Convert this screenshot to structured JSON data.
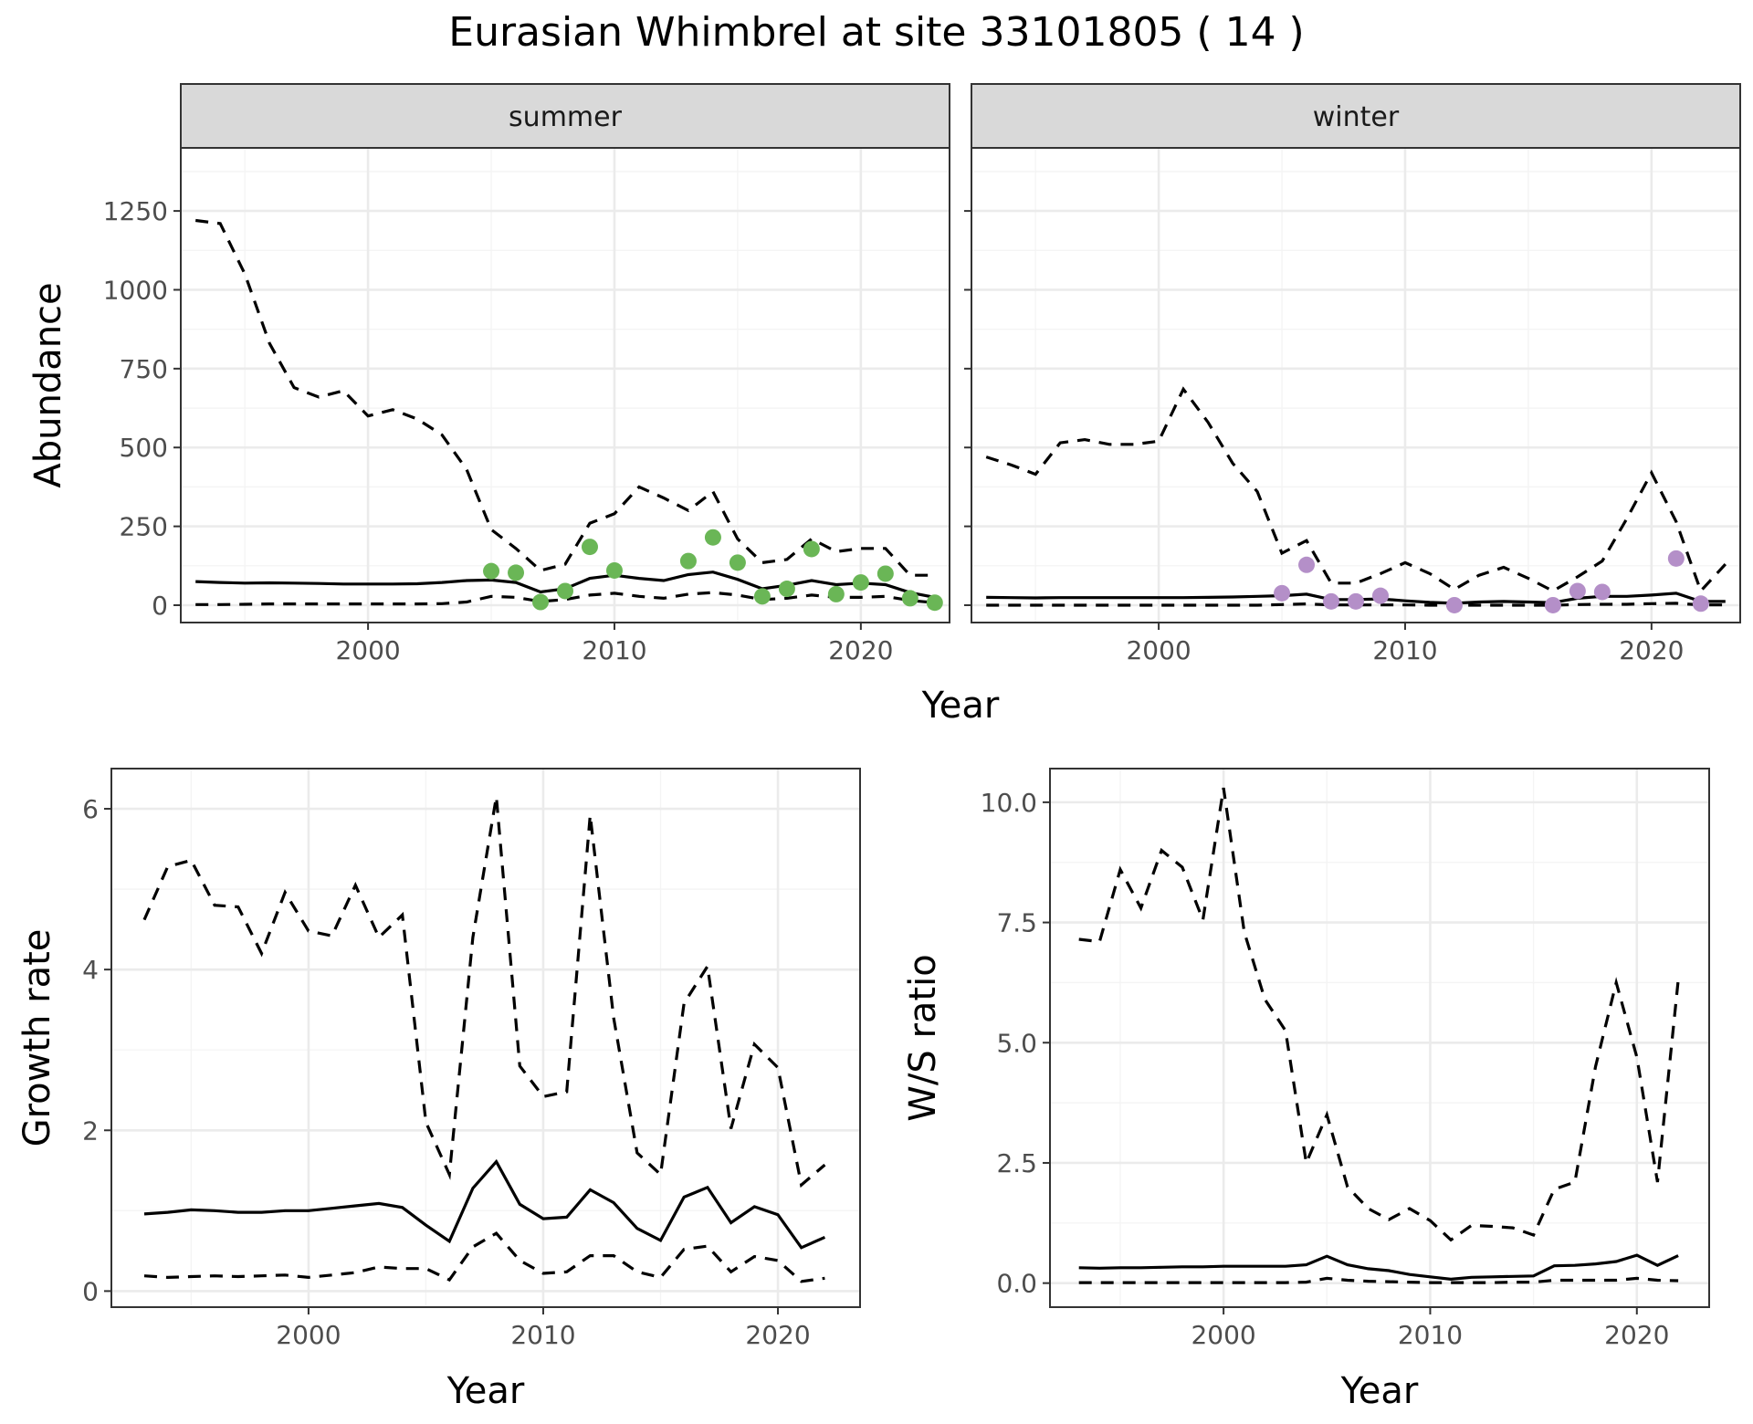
{
  "title": "Eurasian Whimbrel at site 33101805 ( 14 )",
  "colors": {
    "summer_points": "#6ab656",
    "winter_points": "#b48fc8",
    "lines": "#000000"
  },
  "chart_data": [
    {
      "type": "line",
      "id": "abundance-summer",
      "strip": "summer",
      "ylabel": "Abundance",
      "xlabel": "Year",
      "xlim": [
        1992.4,
        2023.6
      ],
      "ylim": [
        -55,
        1450
      ],
      "x_ticks": [
        2000,
        2010,
        2020
      ],
      "x_tick_labels": [
        "2000",
        "2010",
        "2020"
      ],
      "y_ticks": [
        0,
        250,
        500,
        750,
        1000,
        1250
      ],
      "y_tick_labels": [
        "0",
        "250",
        "500",
        "750",
        "1000",
        "1250"
      ],
      "grid": true,
      "series": [
        {
          "role": "mean",
          "style": "solid",
          "x": [
            1993,
            1994,
            1995,
            1996,
            1997,
            1998,
            1999,
            2000,
            2001,
            2002,
            2003,
            2004,
            2005,
            2006,
            2007,
            2008,
            2009,
            2010,
            2011,
            2012,
            2013,
            2014,
            2015,
            2016,
            2017,
            2018,
            2019,
            2020,
            2021,
            2022,
            2023
          ],
          "y": [
            75,
            72,
            70,
            71,
            70,
            69,
            67,
            67,
            67,
            68,
            72,
            78,
            80,
            72,
            42,
            52,
            85,
            95,
            85,
            78,
            97,
            105,
            82,
            52,
            63,
            78,
            65,
            70,
            65,
            40,
            25
          ]
        },
        {
          "role": "upper",
          "style": "dashed",
          "x": [
            1993,
            1994,
            1995,
            1996,
            1997,
            1998,
            1999,
            2000,
            2001,
            2002,
            2003,
            2004,
            2005,
            2006,
            2007,
            2008,
            2009,
            2010,
            2011,
            2012,
            2013,
            2014,
            2015,
            2016,
            2017,
            2018,
            2019,
            2020,
            2021,
            2022,
            2023
          ],
          "y": [
            1220,
            1210,
            1050,
            830,
            690,
            660,
            680,
            600,
            620,
            590,
            540,
            430,
            240,
            180,
            110,
            130,
            260,
            290,
            375,
            340,
            300,
            360,
            210,
            135,
            145,
            210,
            170,
            180,
            180,
            95,
            95
          ]
        },
        {
          "role": "lower",
          "style": "dashed",
          "x": [
            1993,
            1994,
            1995,
            1996,
            1997,
            1998,
            1999,
            2000,
            2001,
            2002,
            2003,
            2004,
            2005,
            2006,
            2007,
            2008,
            2009,
            2010,
            2011,
            2012,
            2013,
            2014,
            2015,
            2016,
            2017,
            2018,
            2019,
            2020,
            2021,
            2022,
            2023
          ],
          "y": [
            2,
            2,
            3,
            4,
            4,
            4,
            4,
            4,
            4,
            4,
            5,
            10,
            28,
            25,
            12,
            18,
            32,
            38,
            28,
            22,
            35,
            40,
            32,
            18,
            22,
            32,
            25,
            25,
            28,
            15,
            8
          ]
        },
        {
          "role": "observed",
          "style": "points",
          "color": "#6ab656",
          "x": [
            2005,
            2006,
            2007,
            2008,
            2009,
            2010,
            2013,
            2014,
            2015,
            2016,
            2017,
            2018,
            2019,
            2020,
            2021,
            2022,
            2023
          ],
          "y": [
            108,
            103,
            10,
            45,
            185,
            110,
            140,
            215,
            135,
            28,
            52,
            178,
            35,
            72,
            100,
            22,
            8
          ]
        }
      ]
    },
    {
      "type": "line",
      "id": "abundance-winter",
      "strip": "winter",
      "xlabel": "Year",
      "xlim": [
        1992.4,
        2023.6
      ],
      "ylim": [
        -55,
        1450
      ],
      "x_ticks": [
        2000,
        2010,
        2020
      ],
      "x_tick_labels": [
        "2000",
        "2010",
        "2020"
      ],
      "y_ticks": [
        0,
        250,
        500,
        750,
        1000,
        1250
      ],
      "grid": true,
      "series": [
        {
          "role": "mean",
          "style": "solid",
          "x": [
            1993,
            1994,
            1995,
            1996,
            1997,
            1998,
            1999,
            2000,
            2001,
            2002,
            2003,
            2004,
            2005,
            2006,
            2007,
            2008,
            2009,
            2010,
            2011,
            2012,
            2013,
            2014,
            2015,
            2016,
            2017,
            2018,
            2019,
            2020,
            2021,
            2022,
            2023
          ],
          "y": [
            25,
            24,
            23,
            24,
            24,
            24,
            24,
            24,
            24,
            25,
            26,
            28,
            30,
            35,
            18,
            18,
            20,
            14,
            9,
            6,
            10,
            12,
            10,
            8,
            22,
            28,
            28,
            32,
            38,
            12,
            12
          ]
        },
        {
          "role": "upper",
          "style": "dashed",
          "x": [
            1993,
            1994,
            1995,
            1996,
            1997,
            1998,
            1999,
            2000,
            2001,
            2002,
            2003,
            2004,
            2005,
            2006,
            2007,
            2008,
            2009,
            2010,
            2011,
            2012,
            2013,
            2014,
            2015,
            2016,
            2017,
            2018,
            2019,
            2020,
            2021,
            2022,
            2023
          ],
          "y": [
            470,
            445,
            415,
            515,
            525,
            510,
            510,
            520,
            685,
            580,
            450,
            360,
            165,
            205,
            70,
            70,
            100,
            135,
            100,
            50,
            95,
            120,
            85,
            45,
            90,
            140,
            275,
            420,
            265,
            45,
            130
          ]
        },
        {
          "role": "lower",
          "style": "dashed",
          "x": [
            1993,
            1994,
            1995,
            1996,
            1997,
            1998,
            1999,
            2000,
            2001,
            2002,
            2003,
            2004,
            2005,
            2006,
            2007,
            2008,
            2009,
            2010,
            2011,
            2012,
            2013,
            2014,
            2015,
            2016,
            2017,
            2018,
            2019,
            2020,
            2021,
            2022,
            2023
          ],
          "y": [
            0,
            0,
            0,
            0,
            0,
            0,
            0,
            0,
            0,
            0,
            0,
            0,
            2,
            4,
            1,
            1,
            1,
            1,
            0,
            0,
            0,
            0,
            0,
            0,
            2,
            3,
            3,
            5,
            6,
            1,
            1
          ]
        },
        {
          "role": "observed",
          "style": "points",
          "color": "#b48fc8",
          "x": [
            2005,
            2006,
            2007,
            2008,
            2009,
            2012,
            2016,
            2017,
            2018,
            2021,
            2022
          ],
          "y": [
            38,
            128,
            12,
            12,
            30,
            0,
            0,
            45,
            42,
            148,
            5
          ]
        }
      ]
    },
    {
      "type": "line",
      "id": "growth-rate",
      "ylabel": "Growth rate",
      "xlabel": "Year",
      "xlim": [
        1991.6,
        2023.5
      ],
      "ylim": [
        -0.2,
        6.5
      ],
      "x_ticks": [
        2000,
        2010,
        2020
      ],
      "x_tick_labels": [
        "2000",
        "2010",
        "2020"
      ],
      "y_ticks": [
        0,
        2,
        4,
        6
      ],
      "y_tick_labels": [
        "0",
        "2",
        "4",
        "6"
      ],
      "grid": true,
      "series": [
        {
          "role": "mean",
          "style": "solid",
          "x": [
            1993,
            1994,
            1995,
            1996,
            1997,
            1998,
            1999,
            2000,
            2001,
            2002,
            2003,
            2004,
            2005,
            2006,
            2007,
            2008,
            2009,
            2010,
            2011,
            2012,
            2013,
            2014,
            2015,
            2016,
            2017,
            2018,
            2019,
            2020,
            2021,
            2022
          ],
          "y": [
            0.96,
            0.98,
            1.01,
            1.0,
            0.98,
            0.98,
            1.0,
            1.0,
            1.03,
            1.06,
            1.09,
            1.04,
            0.82,
            0.62,
            1.28,
            1.61,
            1.08,
            0.9,
            0.92,
            1.26,
            1.1,
            0.78,
            0.63,
            1.17,
            1.29,
            0.85,
            1.05,
            0.95,
            0.54,
            0.67
          ]
        },
        {
          "role": "upper",
          "style": "dashed",
          "x": [
            1993,
            1994,
            1995,
            1996,
            1997,
            1998,
            1999,
            2000,
            2001,
            2002,
            2003,
            2004,
            2005,
            2006,
            2007,
            2008,
            2009,
            2010,
            2011,
            2012,
            2013,
            2014,
            2015,
            2016,
            2017,
            2018,
            2019,
            2020,
            2021,
            2022
          ],
          "y": [
            4.62,
            5.28,
            5.36,
            4.8,
            4.78,
            4.2,
            4.96,
            4.48,
            4.42,
            5.05,
            4.4,
            4.68,
            2.1,
            1.45,
            4.4,
            6.15,
            2.8,
            2.42,
            2.48,
            5.92,
            3.4,
            1.72,
            1.45,
            3.58,
            4.04,
            2.02,
            3.07,
            2.78,
            1.32,
            1.57
          ]
        },
        {
          "role": "lower",
          "style": "dashed",
          "x": [
            1993,
            1994,
            1995,
            1996,
            1997,
            1998,
            1999,
            2000,
            2001,
            2002,
            2003,
            2004,
            2005,
            2006,
            2007,
            2008,
            2009,
            2010,
            2011,
            2012,
            2013,
            2014,
            2015,
            2016,
            2017,
            2018,
            2019,
            2020,
            2021,
            2022
          ],
          "y": [
            0.19,
            0.17,
            0.18,
            0.19,
            0.18,
            0.19,
            0.2,
            0.17,
            0.2,
            0.23,
            0.3,
            0.28,
            0.28,
            0.14,
            0.55,
            0.72,
            0.38,
            0.22,
            0.24,
            0.44,
            0.44,
            0.24,
            0.17,
            0.52,
            0.56,
            0.24,
            0.43,
            0.38,
            0.12,
            0.16
          ]
        }
      ]
    },
    {
      "type": "line",
      "id": "ws-ratio",
      "ylabel": "W/S ratio",
      "xlabel": "Year",
      "xlim": [
        1991.6,
        2023.5
      ],
      "ylim": [
        -0.5,
        10.7
      ],
      "x_ticks": [
        2000,
        2010,
        2020
      ],
      "x_tick_labels": [
        "2000",
        "2010",
        "2020"
      ],
      "y_ticks": [
        0,
        2.5,
        5,
        7.5,
        10
      ],
      "y_tick_labels": [
        "0.0",
        "2.5",
        "5.0",
        "7.5",
        "10.0"
      ],
      "grid": true,
      "series": [
        {
          "role": "mean",
          "style": "solid",
          "x": [
            1993,
            1994,
            1995,
            1996,
            1997,
            1998,
            1999,
            2000,
            2001,
            2002,
            2003,
            2004,
            2005,
            2006,
            2007,
            2008,
            2009,
            2010,
            2011,
            2012,
            2013,
            2014,
            2015,
            2016,
            2017,
            2018,
            2019,
            2020,
            2021,
            2022
          ],
          "y": [
            0.32,
            0.31,
            0.32,
            0.32,
            0.33,
            0.34,
            0.34,
            0.35,
            0.35,
            0.35,
            0.35,
            0.38,
            0.56,
            0.38,
            0.3,
            0.26,
            0.18,
            0.13,
            0.08,
            0.12,
            0.13,
            0.14,
            0.15,
            0.36,
            0.37,
            0.4,
            0.45,
            0.58,
            0.37,
            0.57
          ]
        },
        {
          "role": "upper",
          "style": "dashed",
          "x": [
            1993,
            1994,
            1995,
            1996,
            1997,
            1998,
            1999,
            2000,
            2001,
            2002,
            2003,
            2004,
            2005,
            2006,
            2007,
            2008,
            2009,
            2010,
            2011,
            2012,
            2013,
            2014,
            2015,
            2016,
            2017,
            2018,
            2019,
            2020,
            2021,
            2022
          ],
          "y": [
            7.15,
            7.1,
            8.6,
            7.8,
            9.0,
            8.65,
            7.55,
            10.3,
            7.3,
            5.9,
            5.25,
            2.5,
            3.5,
            2.0,
            1.55,
            1.32,
            1.55,
            1.3,
            0.9,
            1.2,
            1.18,
            1.15,
            1.0,
            1.95,
            2.1,
            4.5,
            6.25,
            4.7,
            2.1,
            6.3
          ]
        },
        {
          "role": "lower",
          "style": "dashed",
          "x": [
            1993,
            1994,
            1995,
            1996,
            1997,
            1998,
            1999,
            2000,
            2001,
            2002,
            2003,
            2004,
            2005,
            2006,
            2007,
            2008,
            2009,
            2010,
            2011,
            2012,
            2013,
            2014,
            2015,
            2016,
            2017,
            2018,
            2019,
            2020,
            2021,
            2022
          ],
          "y": [
            0.01,
            0.01,
            0.01,
            0.01,
            0.01,
            0.01,
            0.01,
            0.01,
            0.01,
            0.01,
            0.01,
            0.02,
            0.1,
            0.06,
            0.04,
            0.03,
            0.02,
            0.01,
            0.01,
            0.01,
            0.01,
            0.02,
            0.02,
            0.06,
            0.06,
            0.06,
            0.06,
            0.1,
            0.06,
            0.05
          ]
        }
      ]
    }
  ]
}
